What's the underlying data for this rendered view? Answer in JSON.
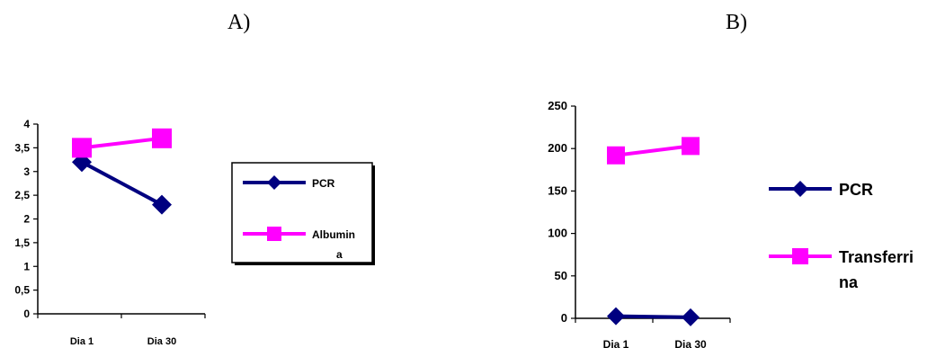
{
  "panels": {
    "a_label": "A)",
    "b_label": "B)"
  },
  "chart_data": [
    {
      "type": "line",
      "categories": [
        "Dia 1",
        "Dia 30"
      ],
      "ylim": [
        0,
        4
      ],
      "yticks": [
        "0",
        "0,5",
        "1",
        "1,5",
        "2",
        "2,5",
        "3",
        "3,5",
        "4"
      ],
      "series": [
        {
          "name": "PCR",
          "values": [
            3.2,
            2.3
          ],
          "color": "#000080",
          "marker": "diamond"
        },
        {
          "name": "Albumina",
          "legend_lines": [
            "Albumin",
            "a"
          ],
          "values": [
            3.5,
            3.7
          ],
          "color": "#ff00ff",
          "marker": "square"
        }
      ],
      "legend": "right, boxed",
      "grid": false
    },
    {
      "type": "line",
      "categories": [
        "Dia 1",
        "Dia 30"
      ],
      "ylim": [
        0,
        250
      ],
      "yticks": [
        "0",
        "50",
        "100",
        "150",
        "200",
        "250"
      ],
      "series": [
        {
          "name": "PCR",
          "values": [
            2.5,
            1.2
          ],
          "color": "#000080",
          "marker": "diamond"
        },
        {
          "name": "Transferrina",
          "legend_lines": [
            "Transferri",
            "na"
          ],
          "values": [
            192,
            203
          ],
          "color": "#ff00ff",
          "marker": "square"
        }
      ],
      "legend": "right",
      "grid": false
    }
  ]
}
